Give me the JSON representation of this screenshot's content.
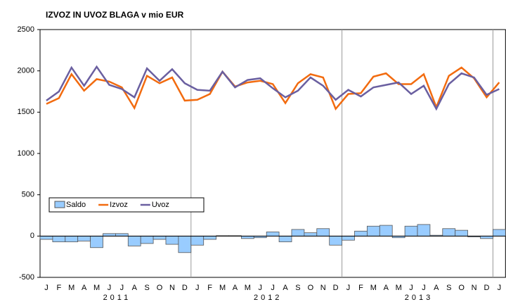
{
  "chart_data": {
    "type": "bar_line",
    "title": "IZVOZ IN UVOZ BLAGA v mio EUR",
    "categories": [
      "J",
      "F",
      "M",
      "A",
      "M",
      "J",
      "J",
      "A",
      "S",
      "O",
      "N",
      "D",
      "J",
      "F",
      "M",
      "A",
      "M",
      "J",
      "J",
      "A",
      "S",
      "O",
      "N",
      "D",
      "J",
      "F",
      "M",
      "A",
      "M",
      "J",
      "J",
      "A",
      "S",
      "O",
      "N",
      "D",
      "J"
    ],
    "years": [
      "2011",
      "2012",
      "2013"
    ],
    "series": [
      {
        "name": "Saldo",
        "kind": "bar",
        "color": "#99ccff",
        "values": [
          -40,
          -70,
          -70,
          -60,
          -140,
          30,
          30,
          -120,
          -90,
          -40,
          -100,
          -200,
          -110,
          -40,
          5,
          5,
          -30,
          -20,
          50,
          -70,
          80,
          40,
          90,
          -110,
          -50,
          60,
          120,
          130,
          -20,
          120,
          140,
          10,
          90,
          70,
          -10,
          -30,
          80
        ]
      },
      {
        "name": "Izvoz",
        "kind": "line",
        "color": "#f26b0f",
        "values": [
          1600,
          1670,
          1960,
          1760,
          1900,
          1870,
          1800,
          1550,
          1940,
          1850,
          1920,
          1640,
          1650,
          1720,
          1990,
          1810,
          1860,
          1880,
          1840,
          1610,
          1850,
          1960,
          1920,
          1540,
          1720,
          1730,
          1930,
          1970,
          1840,
          1840,
          1960,
          1560,
          1940,
          2040,
          1910,
          1680,
          1860
        ]
      },
      {
        "name": "Uvoz",
        "kind": "line",
        "color": "#6a5fa0",
        "values": [
          1640,
          1750,
          2040,
          1820,
          2050,
          1830,
          1780,
          1680,
          2030,
          1880,
          2020,
          1850,
          1770,
          1760,
          1990,
          1800,
          1890,
          1910,
          1790,
          1680,
          1760,
          1920,
          1820,
          1650,
          1770,
          1690,
          1800,
          1830,
          1860,
          1720,
          1820,
          1540,
          1840,
          1970,
          1920,
          1710,
          1780
        ]
      }
    ],
    "ylim": [
      -500,
      2500
    ],
    "yticks": [
      -500,
      0,
      500,
      1000,
      1500,
      2000,
      2500
    ]
  }
}
